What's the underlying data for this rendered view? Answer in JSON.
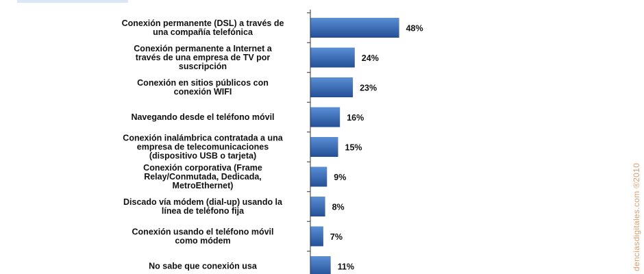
{
  "chart_data": {
    "type": "bar",
    "orientation": "horizontal",
    "categories": [
      [
        "Conexión permanente (DSL) a través de",
        "una compañía telefónica"
      ],
      [
        "Conexión permanente a Internet a",
        "través de una empresa de TV por",
        "suscripción"
      ],
      [
        "Conexión en sitios públicos con",
        "conexión WIFI"
      ],
      [
        "Navegando desde el teléfono móvil"
      ],
      [
        "Conexión inalámbrica contratada a una",
        "empresa de telecomunicaciones",
        "(dispositivo USB o tarjeta)"
      ],
      [
        "Conexión corporativa (Frame",
        "Relay/Conmutada, Dedicada,",
        "MetroEthernet)"
      ],
      [
        "Discado vía módem (dial-up) usando la",
        "línea de teléfono fija"
      ],
      [
        "Conexión usando el teléfono móvil",
        "como módem"
      ],
      [
        "No sabe que conexión usa"
      ]
    ],
    "values": [
      48,
      24,
      23,
      16,
      15,
      9,
      8,
      7,
      11
    ],
    "value_labels": [
      "48%",
      "24%",
      "23%",
      "16%",
      "15%",
      "9%",
      "8%",
      "7%",
      "11%"
    ],
    "xlim": [
      0,
      100
    ],
    "grid": false,
    "bar_color": "#2f66b3"
  },
  "watermark": "denciasdigitales.com ®2010",
  "colors": {
    "bar_gradient_light": "#5a8fd6",
    "bar_gradient_dark": "#244f95",
    "axis": "#333333",
    "watermark": "#d9a070"
  }
}
